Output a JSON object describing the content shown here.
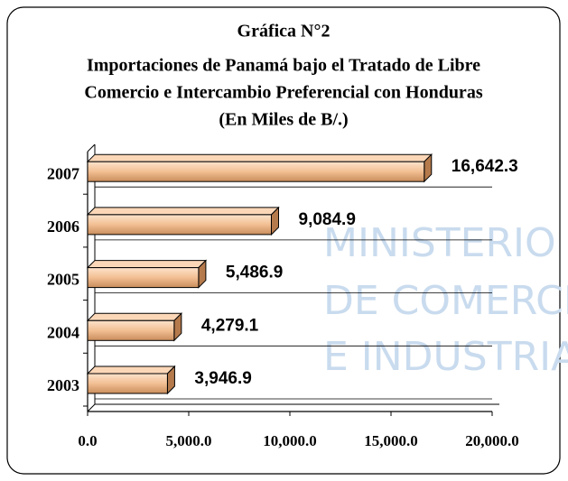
{
  "chart_data": {
    "type": "bar",
    "orientation": "horizontal",
    "title": "Gráfica N°2",
    "subtitle": [
      "Importaciones de Panamá bajo el Tratado de Libre",
      "Comercio e Intercambio Preferencial con Honduras",
      "(En Miles de B/.)"
    ],
    "watermark": [
      "MINISTERIO",
      "DE COMERCIO",
      "E INDUSTRIAS"
    ],
    "categories": [
      "2003",
      "2004",
      "2005",
      "2006",
      "2007"
    ],
    "values": [
      3946.9,
      4279.1,
      5486.9,
      9084.9,
      16642.3
    ],
    "value_labels": [
      "3,946.9",
      "4,279.1",
      "5,486.9",
      "9,084.9",
      "16,642.3"
    ],
    "color": "#f2bf93",
    "xlim": [
      0,
      20000
    ],
    "xticks": [
      {
        "value": 0,
        "label": "0.0"
      },
      {
        "value": 5000,
        "label": "5,000.0"
      },
      {
        "value": 10000,
        "label": "10,000.0"
      },
      {
        "value": 15000,
        "label": "15,000.0"
      },
      {
        "value": 20000,
        "label": "20,000.0"
      }
    ],
    "grid": true
  }
}
